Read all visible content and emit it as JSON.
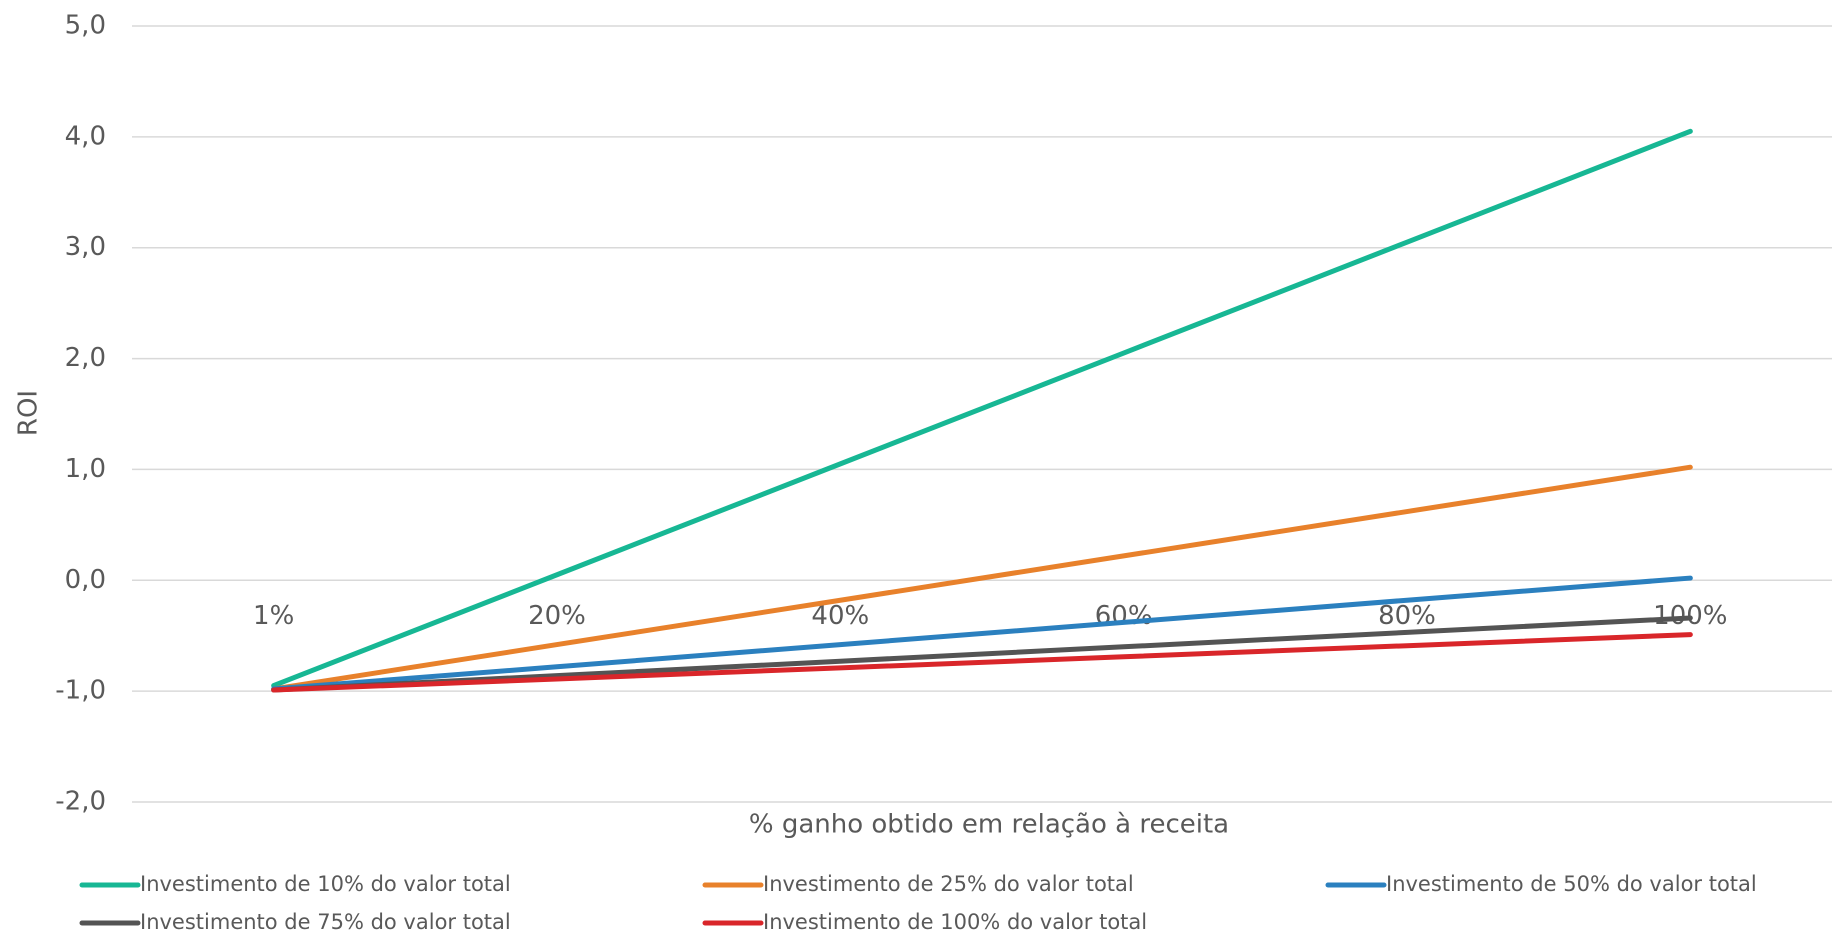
{
  "chart_data": {
    "type": "line",
    "xlabel": "% ganho obtido em relação à receita",
    "ylabel": "ROI",
    "categories": [
      "1%",
      "20%",
      "40%",
      "60%",
      "80%",
      "100%"
    ],
    "series": [
      {
        "name": "Investimento de 10% do valor total",
        "color": "#17b794",
        "values": [
          -0.95,
          0.05,
          1.05,
          2.05,
          3.05,
          4.05
        ]
      },
      {
        "name": "Investimento de 25% do valor total",
        "color": "#e8812b",
        "values": [
          -0.98,
          -0.58,
          -0.18,
          0.22,
          0.62,
          1.02
        ]
      },
      {
        "name": "Investimento de 50% do valor total",
        "color": "#2b80bf",
        "values": [
          -0.98,
          -0.78,
          -0.58,
          -0.38,
          -0.18,
          0.02
        ]
      },
      {
        "name": "Investimento de 75% do valor total",
        "color": "#545454",
        "values": [
          -0.99,
          -0.86,
          -0.73,
          -0.6,
          -0.47,
          -0.34
        ]
      },
      {
        "name": "Investimento de 100% do valor total",
        "color": "#d9262a",
        "values": [
          -0.99,
          -0.89,
          -0.79,
          -0.69,
          -0.59,
          -0.49
        ]
      }
    ],
    "ylim": [
      -2,
      5
    ],
    "yticks": [
      {
        "value": -2,
        "label": "-2,0"
      },
      {
        "value": -1,
        "label": "-1,0"
      },
      {
        "value": 0,
        "label": "0,0"
      },
      {
        "value": 1,
        "label": "1,0"
      },
      {
        "value": 2,
        "label": "2,0"
      },
      {
        "value": 3,
        "label": "3,0"
      },
      {
        "value": 4,
        "label": "4,0"
      },
      {
        "value": 5,
        "label": "5,0"
      }
    ],
    "grid": true,
    "legend": "bottom"
  }
}
